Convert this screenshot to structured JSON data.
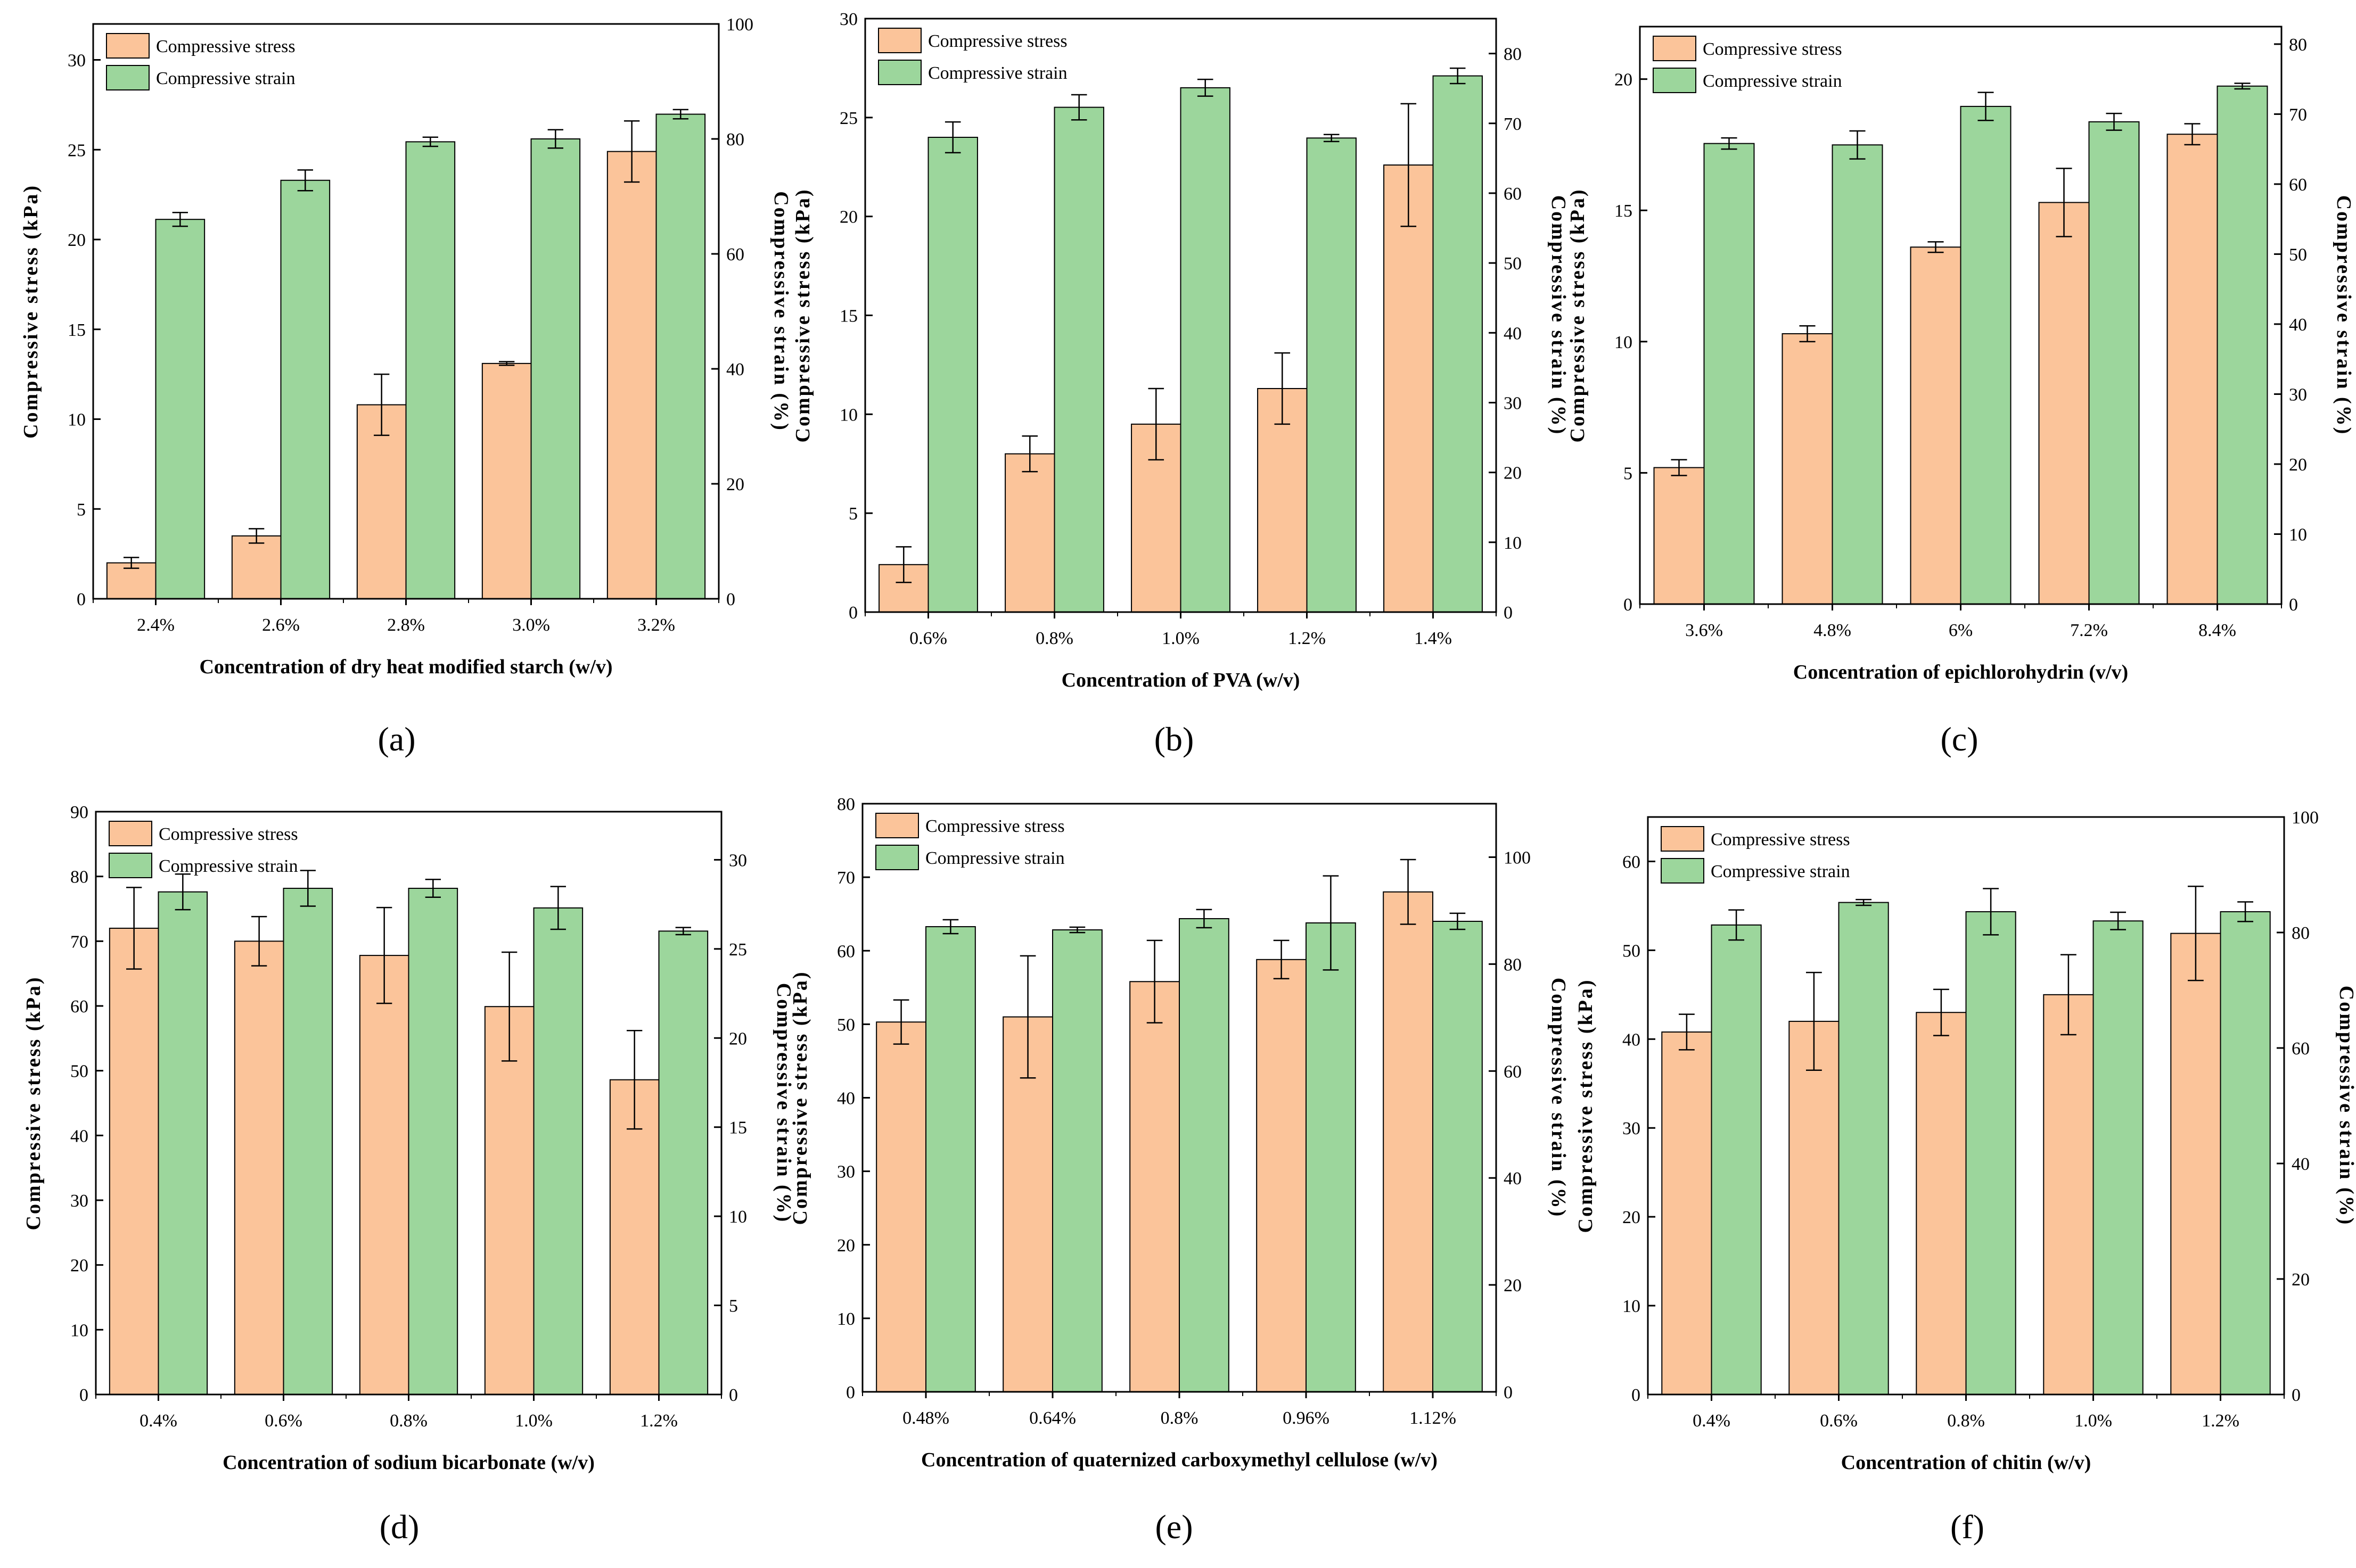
{
  "colors": {
    "stress": "#fbc49a",
    "strain": "#9cd69c",
    "axis": "#000000"
  },
  "chart_data": [
    {
      "id": "a",
      "panel_label": "(a)",
      "type": "bar",
      "xlabel": "Concentration of dry heat modified starch (w/v)",
      "ylabel": "Compressive stress (kPa)",
      "y2label": "Compressive strain (%)",
      "categories": [
        "2.4%",
        "2.6%",
        "2.8%",
        "3.0%",
        "3.2%"
      ],
      "ylim": [
        0,
        32
      ],
      "yticks": [
        0,
        5,
        10,
        15,
        20,
        25,
        30
      ],
      "y2lim": [
        0,
        100
      ],
      "y2ticks": [
        0,
        20,
        40,
        60,
        80,
        100
      ],
      "legend_loc": "top-left",
      "series": [
        {
          "name": "Compressive stress",
          "axis": "left",
          "values": [
            2.0,
            3.5,
            10.8,
            13.1,
            24.9
          ],
          "errors": [
            0.3,
            0.4,
            1.7,
            0.1,
            1.7
          ]
        },
        {
          "name": "Compressive strain",
          "axis": "right",
          "values": [
            66.0,
            72.8,
            79.5,
            80.0,
            84.3
          ],
          "errors": [
            1.2,
            1.8,
            0.8,
            1.6,
            0.8
          ]
        }
      ]
    },
    {
      "id": "b",
      "panel_label": "(b)",
      "type": "bar",
      "xlabel": "Concentration of PVA (w/v)",
      "ylabel": "Compressive stress (kPa)",
      "y2label": "Compressive strain (%)",
      "categories": [
        "0.6%",
        "0.8%",
        "1.0%",
        "1.2%",
        "1.4%"
      ],
      "ylim": [
        0,
        30
      ],
      "yticks": [
        0,
        5,
        10,
        15,
        20,
        25,
        30
      ],
      "y2lim": [
        0,
        85
      ],
      "y2ticks": [
        0,
        10,
        20,
        30,
        40,
        50,
        60,
        70,
        80
      ],
      "legend_loc": "top-left",
      "series": [
        {
          "name": "Compressive stress",
          "axis": "left",
          "values": [
            2.4,
            8.0,
            9.5,
            11.3,
            22.6
          ],
          "errors": [
            0.9,
            0.9,
            1.8,
            1.8,
            3.1
          ]
        },
        {
          "name": "Compressive strain",
          "axis": "right",
          "values": [
            68.0,
            72.3,
            75.1,
            67.9,
            76.8
          ],
          "errors": [
            2.2,
            1.8,
            1.2,
            0.5,
            1.1
          ]
        }
      ]
    },
    {
      "id": "c",
      "panel_label": "(c)",
      "type": "bar",
      "xlabel": "Concentration of epichlorohydrin (v/v)",
      "ylabel": "Compressive stress (kPa)",
      "y2label": "Compressive strain (%)",
      "categories": [
        "3.6%",
        "4.8%",
        "6%",
        "7.2%",
        "8.4%"
      ],
      "ylim": [
        0,
        22
      ],
      "yticks": [
        0,
        5,
        10,
        15,
        20
      ],
      "y2lim": [
        0,
        82.5
      ],
      "y2ticks": [
        0,
        10,
        20,
        30,
        40,
        50,
        60,
        70,
        80
      ],
      "legend_loc": "top-left",
      "series": [
        {
          "name": "Compressive stress",
          "axis": "left",
          "values": [
            5.2,
            10.3,
            13.6,
            15.3,
            17.9
          ],
          "errors": [
            0.3,
            0.3,
            0.2,
            1.3,
            0.4
          ]
        },
        {
          "name": "Compressive strain",
          "axis": "right",
          "values": [
            65.8,
            65.6,
            71.1,
            68.9,
            74.0
          ],
          "errors": [
            0.8,
            2.0,
            2.0,
            1.2,
            0.4
          ]
        }
      ]
    },
    {
      "id": "d",
      "panel_label": "(d)",
      "type": "bar",
      "xlabel": "Concentration of sodium bicarbonate (w/v)",
      "ylabel": "Compressive stress (kPa)",
      "y2label": "Compressive strain (%)",
      "categories": [
        "0.4%",
        "0.6%",
        "0.8%",
        "1.0%",
        "1.2%"
      ],
      "ylim": [
        0,
        90
      ],
      "yticks": [
        0,
        10,
        20,
        30,
        40,
        50,
        60,
        70,
        80,
        90
      ],
      "y2lim": [
        0,
        32.7
      ],
      "y2ticks": [
        0,
        5,
        10,
        15,
        20,
        25,
        30
      ],
      "legend_loc": "top-left",
      "series": [
        {
          "name": "Compressive stress",
          "axis": "left",
          "values": [
            72.0,
            70.0,
            67.8,
            59.9,
            48.6
          ],
          "errors": [
            6.3,
            3.8,
            7.4,
            8.4,
            7.6
          ]
        },
        {
          "name": "Compressive strain",
          "axis": "right",
          "values": [
            28.2,
            28.4,
            28.4,
            27.3,
            26.0
          ],
          "errors": [
            1.0,
            1.0,
            0.5,
            1.2,
            0.2
          ]
        }
      ]
    },
    {
      "id": "e",
      "panel_label": "(e)",
      "type": "bar",
      "xlabel": "Concentration of quaternized carboxymethyl cellulose (w/v)",
      "ylabel": "Compressive stress (kPa)",
      "y2label": "Compressive strain (%)",
      "categories": [
        "0.48%",
        "0.64%",
        "0.8%",
        "0.96%",
        "1.12%"
      ],
      "ylim": [
        0,
        80
      ],
      "yticks": [
        0,
        10,
        20,
        30,
        40,
        50,
        60,
        70,
        80
      ],
      "y2lim": [
        0,
        110
      ],
      "y2ticks": [
        0,
        20,
        40,
        60,
        80,
        100
      ],
      "legend_loc": "top-left",
      "series": [
        {
          "name": "Compressive stress",
          "axis": "left",
          "values": [
            50.3,
            51.0,
            55.8,
            58.8,
            68.0
          ],
          "errors": [
            3.0,
            8.3,
            5.6,
            2.6,
            4.4
          ]
        },
        {
          "name": "Compressive strain",
          "axis": "right",
          "values": [
            87.0,
            86.4,
            88.5,
            87.7,
            88.0
          ],
          "errors": [
            1.3,
            0.5,
            1.7,
            8.8,
            1.5
          ]
        }
      ]
    },
    {
      "id": "f",
      "panel_label": "(f)",
      "type": "bar",
      "xlabel": "Concentration of chitin (w/v)",
      "ylabel": "Compressive stress (kPa)",
      "y2label": "Compressive strain (%)",
      "categories": [
        "0.4%",
        "0.6%",
        "0.8%",
        "1.0%",
        "1.2%"
      ],
      "ylim": [
        0,
        65
      ],
      "yticks": [
        0,
        10,
        20,
        30,
        40,
        50,
        60
      ],
      "y2lim": [
        0,
        100
      ],
      "y2ticks": [
        0,
        20,
        40,
        60,
        80,
        100
      ],
      "legend_loc": "top-left",
      "series": [
        {
          "name": "Compressive stress",
          "axis": "left",
          "values": [
            40.8,
            42.0,
            43.0,
            45.0,
            51.9
          ],
          "errors": [
            2.0,
            5.5,
            2.6,
            4.5,
            5.3
          ]
        },
        {
          "name": "Compressive strain",
          "axis": "right",
          "values": [
            81.3,
            85.2,
            83.6,
            82.0,
            83.6
          ],
          "errors": [
            2.6,
            0.5,
            4.0,
            1.5,
            1.7
          ]
        }
      ]
    }
  ]
}
